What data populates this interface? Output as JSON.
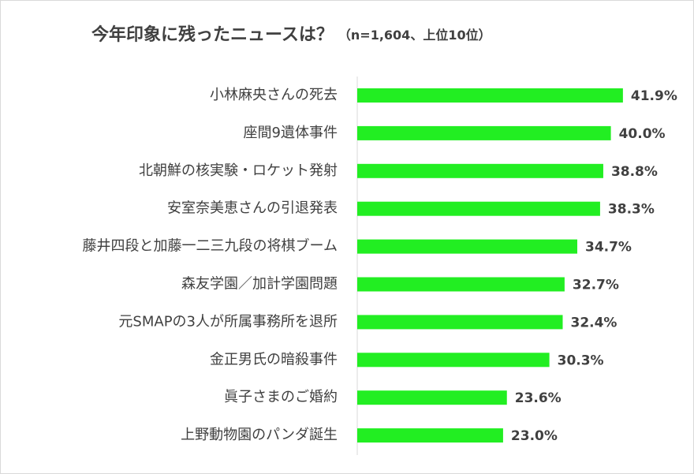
{
  "chart_data": {
    "type": "barh",
    "title": "今年印象に残ったニュースは？",
    "subtitle": "（n=1,604、上位10位）",
    "categories": [
      "小林麻央さんの死去",
      "座間9遺体事件",
      "北朝鮮の核実験・ロケット発射",
      "安室奈美恵さんの引退発表",
      "藤井四段と加藤一二三九段の将棋ブーム",
      "森友学園／加計学園問題",
      "元SMAPの3人が所属事務所を退所",
      "金正男氏の暗殺事件",
      "眞子さまのご婚約",
      "上野動物園のパンダ誕生"
    ],
    "values": [
      41.9,
      40.0,
      38.8,
      38.3,
      34.7,
      32.7,
      32.4,
      30.3,
      23.6,
      23.0
    ],
    "value_labels": [
      "41.9%",
      "40.0%",
      "38.8%",
      "38.3%",
      "34.7%",
      "32.7%",
      "32.4%",
      "30.3%",
      "23.6%",
      "23.0%"
    ],
    "color": "#22ee22",
    "xlim": [
      0,
      50
    ]
  }
}
